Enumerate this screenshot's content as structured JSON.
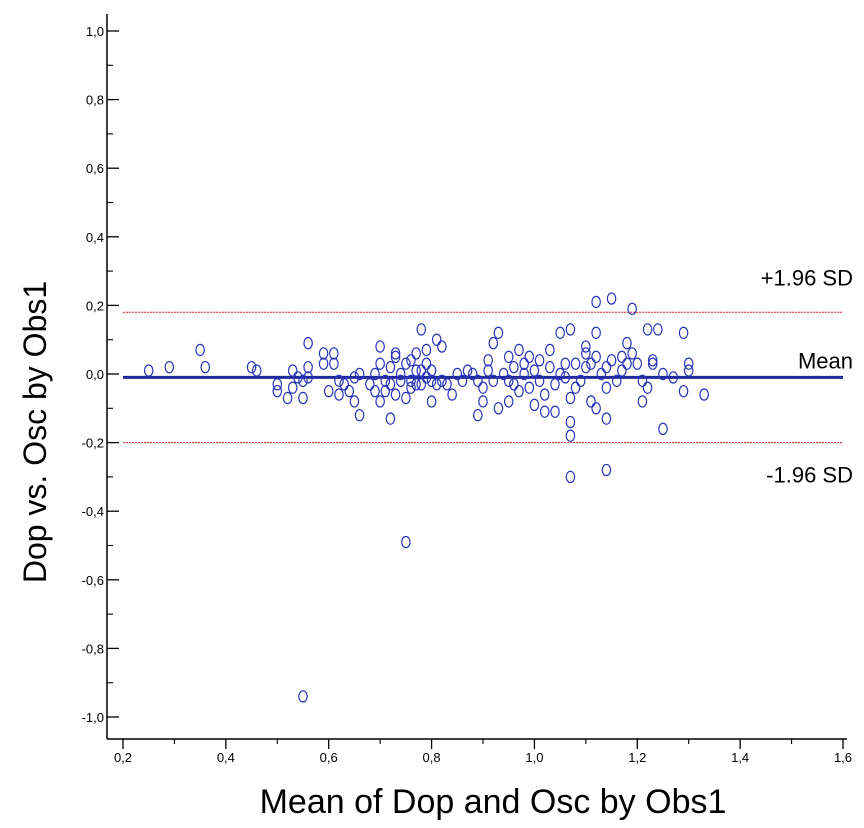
{
  "chart_data": {
    "type": "scatter",
    "xlabel": "Mean of Dop and Osc by Obs1",
    "ylabel": "Dop  vs. Osc by Obs1",
    "xlim": [
      0.2,
      1.6
    ],
    "ylim": [
      -1.0,
      1.0
    ],
    "x_ticks": [
      "0,2",
      "0,4",
      "0,6",
      "0,8",
      "1,0",
      "1,2",
      "1,4",
      "1,6"
    ],
    "y_ticks": [
      "1,0",
      "0,8",
      "0,6",
      "0,4",
      "0,2",
      "0,0",
      "-0,2",
      "-0,4",
      "-0,6",
      "-0,8",
      "-1,0"
    ],
    "grid": false,
    "reference_lines": [
      {
        "label": "+1.96 SD",
        "value": 0.18,
        "color": "#d62020",
        "style": "dashed"
      },
      {
        "label": "Mean",
        "value": -0.01,
        "color": "#1f2b9c",
        "style": "solid"
      },
      {
        "label": "-1.96 SD",
        "value": -0.2,
        "color": "#d62020",
        "style": "dashed"
      }
    ],
    "marker_color": "#2733b8",
    "points": [
      [
        0.25,
        0.01
      ],
      [
        0.29,
        0.02
      ],
      [
        0.35,
        0.07
      ],
      [
        0.36,
        0.02
      ],
      [
        0.45,
        0.02
      ],
      [
        0.46,
        0.01
      ],
      [
        0.5,
        -0.05
      ],
      [
        0.5,
        -0.03
      ],
      [
        0.52,
        -0.07
      ],
      [
        0.53,
        0.01
      ],
      [
        0.53,
        -0.04
      ],
      [
        0.54,
        -0.01
      ],
      [
        0.55,
        -0.02
      ],
      [
        0.55,
        -0.07
      ],
      [
        0.56,
        0.09
      ],
      [
        0.56,
        0.02
      ],
      [
        0.56,
        -0.01
      ],
      [
        0.59,
        0.06
      ],
      [
        0.59,
        0.03
      ],
      [
        0.6,
        -0.05
      ],
      [
        0.61,
        0.06
      ],
      [
        0.61,
        0.03
      ],
      [
        0.62,
        -0.02
      ],
      [
        0.62,
        -0.06
      ],
      [
        0.63,
        -0.03
      ],
      [
        0.64,
        -0.05
      ],
      [
        0.65,
        -0.01
      ],
      [
        0.65,
        -0.08
      ],
      [
        0.66,
        0.0
      ],
      [
        0.66,
        -0.12
      ],
      [
        0.68,
        -0.03
      ],
      [
        0.69,
        -0.05
      ],
      [
        0.69,
        0.0
      ],
      [
        0.7,
        0.08
      ],
      [
        0.7,
        0.03
      ],
      [
        0.7,
        -0.08
      ],
      [
        0.71,
        -0.05
      ],
      [
        0.71,
        -0.02
      ],
      [
        0.72,
        0.02
      ],
      [
        0.72,
        -0.03
      ],
      [
        0.72,
        -0.13
      ],
      [
        0.73,
        0.06
      ],
      [
        0.73,
        0.05
      ],
      [
        0.73,
        -0.06
      ],
      [
        0.74,
        0.0
      ],
      [
        0.74,
        -0.02
      ],
      [
        0.75,
        -0.07
      ],
      [
        0.75,
        0.03
      ],
      [
        0.75,
        -0.49
      ],
      [
        0.76,
        0.04
      ],
      [
        0.76,
        -0.02
      ],
      [
        0.76,
        -0.04
      ],
      [
        0.77,
        0.06
      ],
      [
        0.77,
        0.01
      ],
      [
        0.77,
        -0.03
      ],
      [
        0.78,
        0.13
      ],
      [
        0.78,
        -0.03
      ],
      [
        0.78,
        0.01
      ],
      [
        0.79,
        -0.01
      ],
      [
        0.79,
        0.07
      ],
      [
        0.79,
        0.03
      ],
      [
        0.8,
        -0.08
      ],
      [
        0.8,
        -0.02
      ],
      [
        0.8,
        0.01
      ],
      [
        0.81,
        0.1
      ],
      [
        0.81,
        -0.03
      ],
      [
        0.82,
        0.08
      ],
      [
        0.82,
        -0.02
      ],
      [
        0.83,
        -0.03
      ],
      [
        0.84,
        -0.06
      ],
      [
        0.85,
        0.0
      ],
      [
        0.86,
        -0.02
      ],
      [
        0.87,
        0.01
      ],
      [
        0.88,
        0.0
      ],
      [
        0.89,
        -0.02
      ],
      [
        0.89,
        -0.12
      ],
      [
        0.9,
        -0.04
      ],
      [
        0.9,
        -0.08
      ],
      [
        0.91,
        0.01
      ],
      [
        0.91,
        0.04
      ],
      [
        0.92,
        0.09
      ],
      [
        0.92,
        -0.02
      ],
      [
        0.93,
        0.12
      ],
      [
        0.93,
        -0.1
      ],
      [
        0.94,
        0.0
      ],
      [
        0.95,
        0.05
      ],
      [
        0.95,
        -0.02
      ],
      [
        0.95,
        -0.08
      ],
      [
        0.96,
        0.02
      ],
      [
        0.96,
        -0.03
      ],
      [
        0.97,
        0.07
      ],
      [
        0.97,
        -0.05
      ],
      [
        0.98,
        0.03
      ],
      [
        0.98,
        0.0
      ],
      [
        0.99,
        0.05
      ],
      [
        0.99,
        -0.04
      ],
      [
        1.0,
        -0.09
      ],
      [
        1.0,
        0.01
      ],
      [
        1.01,
        0.04
      ],
      [
        1.01,
        -0.02
      ],
      [
        1.02,
        -0.11
      ],
      [
        1.02,
        -0.06
      ],
      [
        1.03,
        0.07
      ],
      [
        1.03,
        0.02
      ],
      [
        1.04,
        -0.11
      ],
      [
        1.04,
        -0.03
      ],
      [
        1.05,
        0.0
      ],
      [
        1.05,
        0.12
      ],
      [
        1.06,
        0.03
      ],
      [
        1.06,
        -0.01
      ],
      [
        1.07,
        0.13
      ],
      [
        1.07,
        -0.07
      ],
      [
        1.07,
        -0.14
      ],
      [
        1.07,
        -0.18
      ],
      [
        1.07,
        -0.3
      ],
      [
        1.08,
        0.03
      ],
      [
        1.08,
        -0.04
      ],
      [
        1.09,
        -0.02
      ],
      [
        1.1,
        0.08
      ],
      [
        1.1,
        0.06
      ],
      [
        1.1,
        0.02
      ],
      [
        1.11,
        -0.08
      ],
      [
        1.11,
        0.03
      ],
      [
        1.12,
        0.21
      ],
      [
        1.12,
        0.12
      ],
      [
        1.12,
        0.05
      ],
      [
        1.12,
        -0.1
      ],
      [
        1.13,
        0.0
      ],
      [
        1.14,
        0.02
      ],
      [
        1.14,
        -0.04
      ],
      [
        1.14,
        -0.13
      ],
      [
        1.14,
        -0.28
      ],
      [
        1.15,
        0.22
      ],
      [
        1.15,
        0.04
      ],
      [
        1.16,
        -0.02
      ],
      [
        1.17,
        0.05
      ],
      [
        1.17,
        0.01
      ],
      [
        1.18,
        0.03
      ],
      [
        1.18,
        0.09
      ],
      [
        1.19,
        0.06
      ],
      [
        1.19,
        0.19
      ],
      [
        1.2,
        0.03
      ],
      [
        1.21,
        -0.02
      ],
      [
        1.21,
        -0.08
      ],
      [
        1.22,
        0.13
      ],
      [
        1.22,
        -0.04
      ],
      [
        1.23,
        0.04
      ],
      [
        1.23,
        0.03
      ],
      [
        1.24,
        0.13
      ],
      [
        1.25,
        -0.16
      ],
      [
        1.25,
        0.0
      ],
      [
        1.27,
        -0.01
      ],
      [
        1.29,
        0.12
      ],
      [
        1.29,
        -0.05
      ],
      [
        1.3,
        0.03
      ],
      [
        1.3,
        0.01
      ],
      [
        1.33,
        -0.06
      ],
      [
        0.55,
        -0.94
      ]
    ]
  }
}
